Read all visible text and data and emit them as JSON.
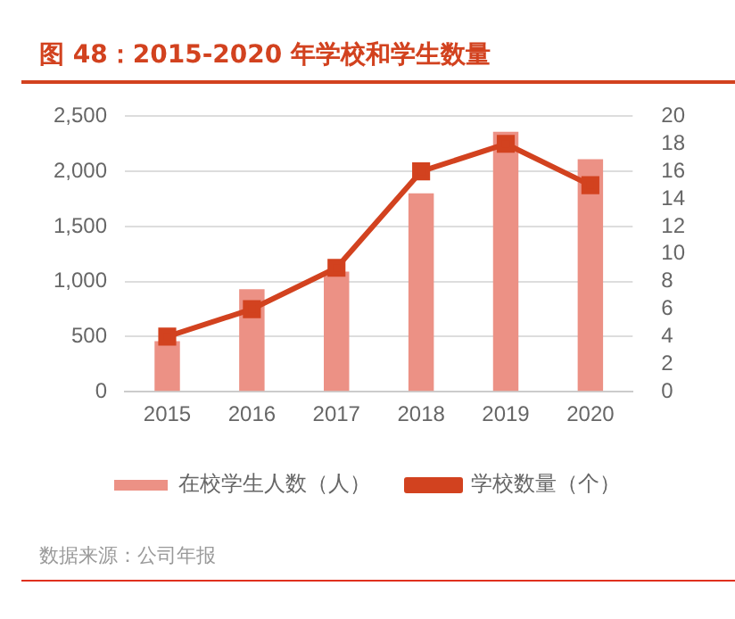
{
  "chart_data": {
    "type": "bar",
    "title": "图 48：2015-2020 年学校和学生数量",
    "categories": [
      "2015",
      "2016",
      "2017",
      "2018",
      "2019",
      "2020"
    ],
    "series": [
      {
        "name": "在校学生人数（人）",
        "color": "#ec9185",
        "values": [
          460,
          930,
          1090,
          1800,
          2360,
          2110
        ]
      },
      {
        "name": "学校数量（个）",
        "type": "line",
        "axis": "y2",
        "color": "#d2421f",
        "marker": "square",
        "values": [
          4,
          6,
          9,
          16,
          18,
          15
        ]
      }
    ],
    "ylim": [
      0,
      2500
    ],
    "yticks": [
      {
        "value": 0,
        "label": "0"
      },
      {
        "value": 500,
        "label": "500"
      },
      {
        "value": 1000,
        "label": "1,000"
      },
      {
        "value": 1500,
        "label": "1,500"
      },
      {
        "value": 2000,
        "label": "2,000"
      },
      {
        "value": 2500,
        "label": "2,500"
      }
    ],
    "y2lim": [
      0,
      20
    ],
    "y2ticks": [
      0,
      2,
      4,
      6,
      8,
      10,
      12,
      14,
      16,
      18,
      20
    ],
    "grid": "y",
    "legend": "bottom",
    "annotations": [
      "数据来源：公司年报"
    ]
  }
}
